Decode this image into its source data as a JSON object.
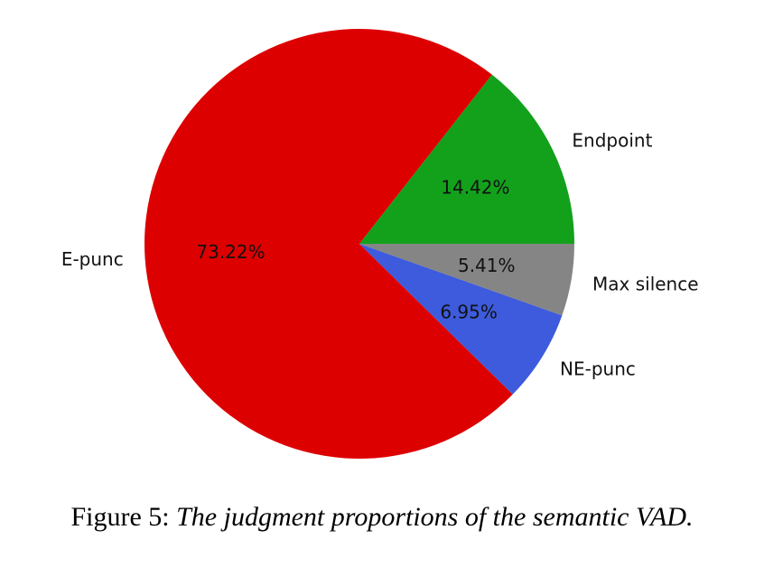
{
  "caption": {
    "prefix": "Figure 5:",
    "text": "The judgment proportions of the semantic VAD."
  },
  "chart_data": {
    "type": "pie",
    "slices": [
      {
        "label": "Endpoint",
        "value": 14.42,
        "pct_text": "14.42%",
        "color": "#13a11c"
      },
      {
        "label": "E-punc",
        "value": 73.22,
        "pct_text": "73.22%",
        "color": "#dd0000"
      },
      {
        "label": "NE-punc",
        "value": 6.95,
        "pct_text": "6.95%",
        "color": "#3d5bdc"
      },
      {
        "label": "Max silence",
        "value": 5.41,
        "pct_text": "5.41%",
        "color": "#858585"
      }
    ],
    "start_angle_deg": 0,
    "direction": "counterclockwise"
  }
}
